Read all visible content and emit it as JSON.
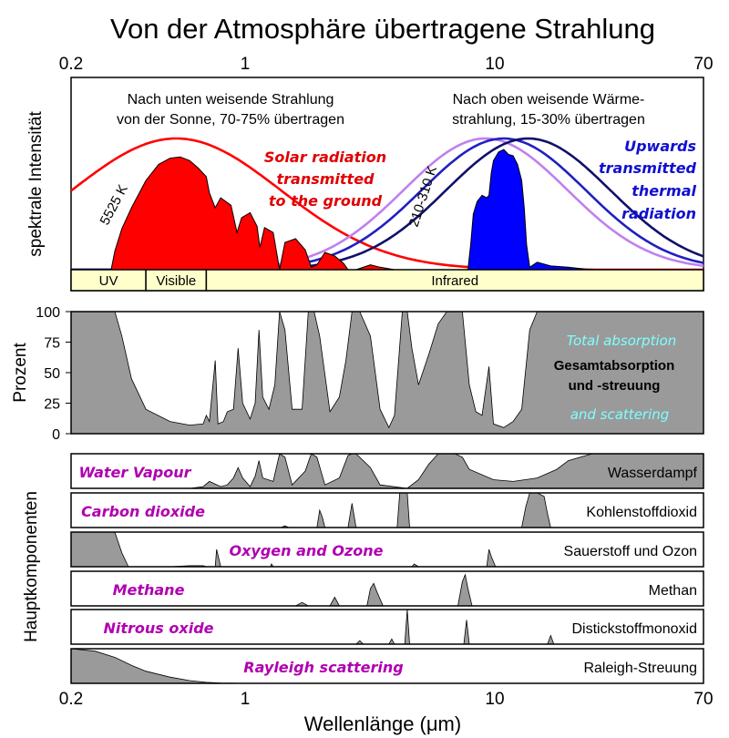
{
  "chart_data": {
    "type": "area",
    "title": "Von der Atmosphäre übertragene Strahlung",
    "xlabel": "Wellenlänge (μm)",
    "xscale": "log",
    "xlim": [
      0.2,
      70
    ],
    "x_ticks": [
      "0.2",
      "1",
      "10",
      "70"
    ],
    "x_tick_values": [
      0.2,
      1,
      10,
      70
    ],
    "colors": {
      "solar": "#ff0000",
      "earth": "#0000ff",
      "gray": "#9a9a9a",
      "band": "#ffffcc",
      "magenta": "#b000b0",
      "cyan": "#7fffff",
      "blue_label": "#1010d0",
      "red_label": "#e00000",
      "bb_light": "#c080f0",
      "bb_mid": "#2020c0",
      "bb_dark": "#10106a"
    },
    "top_panel": {
      "ylabel": "spektrale Intensität",
      "solar_note_de": [
        "Nach unten weisende Strahlung",
        "von der Sonne, 70-75% übertragen"
      ],
      "earth_note_de": [
        "Nach oben weisende Wärme-",
        "strahlung, 15-30% übertragen"
      ],
      "solar_label_en": [
        "Solar radiation",
        "transmitted",
        "to the ground"
      ],
      "earth_label_en": [
        "Upwards",
        "transmitted",
        "thermal",
        "radiation"
      ],
      "solar_temp": "5525 K",
      "earth_temp": "210-310 K",
      "bands": [
        {
          "name": "UV",
          "range": [
            0.2,
            0.4
          ]
        },
        {
          "name": "Visible",
          "range": [
            0.4,
            0.7
          ]
        },
        {
          "name": "Infrared",
          "range": [
            0.7,
            70
          ]
        }
      ],
      "blackbody_peaks_um": [
        0.53,
        9.3,
        11.0,
        13.8
      ],
      "solar_transmitted": {
        "x": [
          0.29,
          0.3,
          0.32,
          0.35,
          0.4,
          0.45,
          0.5,
          0.55,
          0.6,
          0.65,
          0.7,
          0.72,
          0.76,
          0.8,
          0.88,
          0.93,
          0.97,
          1.05,
          1.12,
          1.15,
          1.2,
          1.3,
          1.38,
          1.45,
          1.6,
          1.75,
          1.85,
          1.95,
          2.1,
          2.3,
          2.5,
          2.6,
          2.8,
          3.2,
          3.5,
          4.0
        ],
        "y": [
          0.0,
          0.15,
          0.33,
          0.5,
          0.72,
          0.85,
          0.9,
          0.91,
          0.88,
          0.82,
          0.75,
          0.62,
          0.5,
          0.58,
          0.52,
          0.3,
          0.42,
          0.46,
          0.35,
          0.18,
          0.34,
          0.3,
          0.0,
          0.22,
          0.25,
          0.16,
          0.02,
          0.04,
          0.14,
          0.11,
          0.05,
          0.0,
          0.0,
          0.04,
          0.02,
          0.0
        ]
      },
      "earth_transmitted": {
        "x": [
          7.9,
          8.1,
          8.3,
          8.6,
          9.0,
          9.4,
          9.6,
          9.8,
          10.0,
          10.5,
          11.0,
          11.5,
          12.0,
          12.5,
          13.0,
          13.3,
          13.6,
          14.0,
          15.0,
          17.0,
          20.0,
          25.0
        ],
        "y": [
          0.0,
          0.2,
          0.45,
          0.55,
          0.6,
          0.58,
          0.6,
          0.78,
          0.88,
          0.95,
          0.97,
          0.93,
          0.92,
          0.85,
          0.72,
          0.5,
          0.2,
          0.02,
          0.06,
          0.03,
          0.02,
          0.0
        ]
      }
    },
    "absorption_panel": {
      "ylabel": "Prozent",
      "yticks": [
        0,
        25,
        50,
        75,
        100
      ],
      "ylim": [
        0,
        100
      ],
      "label_en": "Total absorption",
      "label_en2": "and scattering",
      "label_de": [
        "Gesamtabsorption",
        "und -streuung"
      ],
      "x": [
        0.2,
        0.3,
        0.32,
        0.35,
        0.4,
        0.5,
        0.6,
        0.68,
        0.7,
        0.72,
        0.76,
        0.78,
        0.82,
        0.85,
        0.9,
        0.94,
        0.98,
        1.05,
        1.1,
        1.14,
        1.18,
        1.25,
        1.32,
        1.38,
        1.45,
        1.55,
        1.7,
        1.8,
        1.9,
        2.0,
        2.2,
        2.4,
        2.55,
        2.7,
        2.9,
        3.2,
        3.5,
        3.8,
        4.0,
        4.3,
        4.5,
        4.7,
        5.0,
        5.5,
        6.0,
        6.5,
        7.0,
        7.5,
        8.0,
        8.5,
        9.0,
        9.6,
        10.0,
        11.0,
        12.0,
        13.0,
        14.0,
        15.0,
        17.0,
        20.0,
        25.0,
        30.0,
        70.0
      ],
      "y": [
        100,
        100,
        80,
        45,
        20,
        10,
        7,
        8,
        15,
        10,
        60,
        8,
        10,
        18,
        20,
        70,
        25,
        12,
        25,
        85,
        30,
        20,
        40,
        100,
        85,
        20,
        20,
        100,
        100,
        80,
        18,
        30,
        60,
        100,
        100,
        80,
        20,
        5,
        15,
        100,
        100,
        70,
        40,
        65,
        90,
        100,
        100,
        100,
        40,
        18,
        15,
        55,
        8,
        5,
        10,
        20,
        85,
        100,
        100,
        100,
        100,
        100,
        100
      ]
    },
    "components": [
      {
        "name_de": "Wasserdampf",
        "name_en": "Water Vapour",
        "x": [
          0.2,
          0.6,
          0.68,
          0.72,
          0.8,
          0.85,
          0.9,
          0.94,
          0.98,
          1.05,
          1.1,
          1.14,
          1.18,
          1.3,
          1.38,
          1.45,
          1.55,
          1.75,
          1.85,
          1.95,
          2.1,
          2.4,
          2.6,
          2.7,
          2.8,
          3.2,
          3.5,
          4.5,
          5.0,
          5.5,
          6.0,
          6.5,
          7.0,
          7.5,
          8.0,
          10.0,
          12.0,
          15.0,
          18.0,
          20.0,
          25.0,
          40.0,
          70.0
        ],
        "y": [
          0,
          0,
          0.05,
          0.2,
          0.05,
          0.1,
          0.3,
          0.6,
          0.3,
          0.05,
          0.35,
          0.8,
          0.3,
          0.2,
          1.0,
          0.9,
          0.1,
          0.5,
          1.0,
          0.9,
          0.1,
          0.3,
          0.95,
          1.0,
          1.0,
          0.6,
          0.1,
          0.0,
          0.25,
          0.7,
          1.0,
          1.0,
          1.0,
          0.9,
          0.55,
          0.25,
          0.2,
          0.3,
          0.55,
          0.8,
          1.0,
          1.0,
          1.0
        ]
      },
      {
        "name_de": "Kohlenstoffdioxid",
        "name_en": "Carbon dioxide",
        "x": [
          0.2,
          1.4,
          1.45,
          1.5,
          1.95,
          2.0,
          2.05,
          2.1,
          2.6,
          2.7,
          2.8,
          4.1,
          4.2,
          4.3,
          4.5,
          4.6,
          13.0,
          13.5,
          14.0,
          15.0,
          16.0,
          16.5,
          17.0,
          70.0
        ],
        "y": [
          0,
          0,
          0.05,
          0,
          0,
          0.5,
          0.3,
          0,
          0,
          0.7,
          0,
          0,
          1.0,
          1.0,
          1.0,
          0,
          0,
          0.6,
          1.0,
          1.0,
          0.9,
          0.4,
          0,
          0
        ]
      },
      {
        "name_de": "Sauerstoff und Ozon",
        "name_en": "Oxygen and Ozone",
        "x": [
          0.2,
          0.3,
          0.32,
          0.34,
          0.5,
          0.6,
          0.68,
          0.7,
          0.76,
          0.77,
          0.8,
          1.27,
          1.28,
          1.3,
          4.7,
          4.8,
          5.0,
          9.4,
          9.6,
          9.8,
          10.2,
          70.0
        ],
        "y": [
          1.0,
          1.0,
          0.4,
          0,
          0,
          0.03,
          0.03,
          0,
          0,
          0.5,
          0,
          0,
          0.08,
          0,
          0,
          0.08,
          0,
          0,
          0.5,
          0.3,
          0,
          0
        ]
      },
      {
        "name_de": "Methan",
        "name_en": "Methane",
        "x": [
          0.2,
          1.6,
          1.7,
          1.8,
          2.2,
          2.3,
          2.4,
          3.1,
          3.2,
          3.3,
          3.4,
          3.6,
          7.2,
          7.5,
          7.7,
          7.9,
          8.2,
          70.0
        ],
        "y": [
          0,
          0,
          0.1,
          0,
          0,
          0.25,
          0,
          0,
          0.5,
          0.65,
          0.4,
          0,
          0,
          0.7,
          0.9,
          0.5,
          0,
          0
        ]
      },
      {
        "name_de": "Distickstoffmonoxid",
        "name_en": "Nitrous oxide",
        "x": [
          0.2,
          2.8,
          2.9,
          3.0,
          3.8,
          3.9,
          4.0,
          4.4,
          4.5,
          4.6,
          7.6,
          7.8,
          8.0,
          16.5,
          17.0,
          17.5,
          70.0
        ],
        "y": [
          0,
          0,
          0.1,
          0,
          0,
          0.15,
          0,
          0,
          1.0,
          0,
          0,
          0.7,
          0,
          0,
          0.25,
          0,
          0
        ]
      },
      {
        "name_de": "Raleigh-Streuung",
        "name_en": "Rayleigh scattering",
        "x": [
          0.2,
          0.25,
          0.3,
          0.35,
          0.4,
          0.5,
          0.6,
          0.7,
          0.8,
          1.0,
          70.0
        ],
        "y": [
          1.0,
          0.93,
          0.75,
          0.52,
          0.35,
          0.18,
          0.08,
          0.03,
          0.01,
          0,
          0
        ]
      }
    ],
    "components_ylabel": "Hauptkomponenten"
  }
}
